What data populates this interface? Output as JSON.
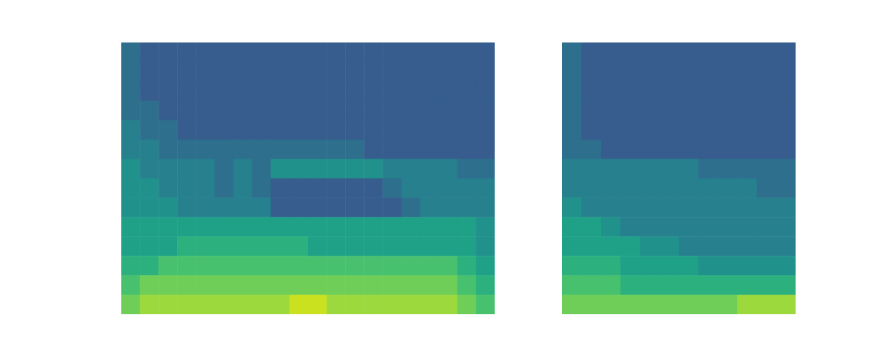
{
  "chart_data": [
    {
      "type": "heatmap",
      "tick_labels": false,
      "zlim": [
        0,
        10
      ],
      "values": [
        [
          2,
          1,
          1,
          1,
          1,
          1,
          1,
          1,
          1,
          1,
          1,
          1,
          1,
          1,
          1,
          1,
          1,
          1,
          1,
          1
        ],
        [
          2,
          1,
          1,
          1,
          1,
          1,
          1,
          1,
          1,
          1,
          1,
          1,
          1,
          1,
          1,
          1,
          1,
          1,
          1,
          1
        ],
        [
          2,
          1,
          1,
          1,
          1,
          1,
          1,
          1,
          1,
          1,
          1,
          1,
          1,
          1,
          1,
          1,
          1,
          1,
          1,
          1
        ],
        [
          2,
          2,
          1,
          1,
          1,
          1,
          1,
          1,
          1,
          1,
          1,
          1,
          1,
          1,
          1,
          1,
          1,
          1,
          1,
          1
        ],
        [
          3,
          2,
          2,
          1,
          1,
          1,
          1,
          1,
          1,
          1,
          1,
          1,
          1,
          1,
          1,
          1,
          1,
          1,
          1,
          1
        ],
        [
          3,
          3,
          2,
          2,
          2,
          2,
          2,
          2,
          2,
          2,
          2,
          2,
          2,
          1,
          1,
          1,
          1,
          1,
          1,
          1
        ],
        [
          4,
          3,
          3,
          3,
          3,
          2,
          3,
          2,
          4,
          4,
          4,
          4,
          4,
          4,
          3,
          3,
          3,
          3,
          2,
          2
        ],
        [
          4,
          4,
          3,
          3,
          3,
          2,
          3,
          2,
          1,
          1,
          1,
          1,
          1,
          1,
          2,
          3,
          3,
          3,
          3,
          3
        ],
        [
          4,
          4,
          4,
          3,
          3,
          3,
          3,
          3,
          1,
          1,
          1,
          1,
          1,
          1,
          1,
          2,
          3,
          3,
          3,
          3
        ],
        [
          5,
          5,
          5,
          5,
          5,
          5,
          5,
          5,
          5,
          5,
          5,
          5,
          5,
          5,
          5,
          5,
          5,
          5,
          5,
          4
        ],
        [
          5,
          5,
          5,
          6,
          6,
          6,
          6,
          6,
          6,
          6,
          5,
          5,
          5,
          5,
          5,
          5,
          5,
          5,
          5,
          4
        ],
        [
          6,
          6,
          7,
          7,
          7,
          7,
          7,
          7,
          7,
          7,
          7,
          7,
          7,
          7,
          7,
          7,
          7,
          7,
          6,
          5
        ],
        [
          7,
          8,
          8,
          8,
          8,
          8,
          8,
          8,
          8,
          8,
          8,
          8,
          8,
          8,
          8,
          8,
          8,
          8,
          7,
          6
        ],
        [
          8,
          9,
          9,
          9,
          9,
          9,
          9,
          9,
          9,
          10,
          10,
          9,
          9,
          9,
          9,
          9,
          9,
          9,
          8,
          7
        ]
      ]
    },
    {
      "type": "heatmap",
      "tick_labels": false,
      "zlim": [
        0,
        10
      ],
      "values": [
        [
          2,
          1,
          1,
          1,
          1,
          1,
          1,
          1,
          1,
          1,
          1,
          1
        ],
        [
          2,
          1,
          1,
          1,
          1,
          1,
          1,
          1,
          1,
          1,
          1,
          1
        ],
        [
          2,
          1,
          1,
          1,
          1,
          1,
          1,
          1,
          1,
          1,
          1,
          1
        ],
        [
          2,
          1,
          1,
          1,
          1,
          1,
          1,
          1,
          1,
          1,
          1,
          1
        ],
        [
          2,
          1,
          1,
          1,
          1,
          1,
          1,
          1,
          1,
          1,
          1,
          1
        ],
        [
          2,
          2,
          1,
          1,
          1,
          1,
          1,
          1,
          1,
          1,
          1,
          1
        ],
        [
          3,
          3,
          3,
          3,
          3,
          3,
          3,
          2,
          2,
          2,
          2,
          2
        ],
        [
          3,
          3,
          3,
          3,
          3,
          3,
          3,
          3,
          3,
          3,
          2,
          2
        ],
        [
          4,
          3,
          3,
          3,
          3,
          3,
          3,
          3,
          3,
          3,
          3,
          3
        ],
        [
          5,
          5,
          4,
          3,
          3,
          3,
          3,
          3,
          3,
          3,
          3,
          3
        ],
        [
          5,
          5,
          5,
          5,
          4,
          4,
          3,
          3,
          3,
          3,
          3,
          3
        ],
        [
          6,
          6,
          6,
          5,
          5,
          5,
          5,
          4,
          4,
          4,
          4,
          4
        ],
        [
          7,
          7,
          7,
          6,
          6,
          6,
          6,
          6,
          6,
          6,
          6,
          6
        ],
        [
          8,
          8,
          8,
          8,
          8,
          8,
          8,
          8,
          8,
          9,
          9,
          9
        ]
      ]
    }
  ]
}
